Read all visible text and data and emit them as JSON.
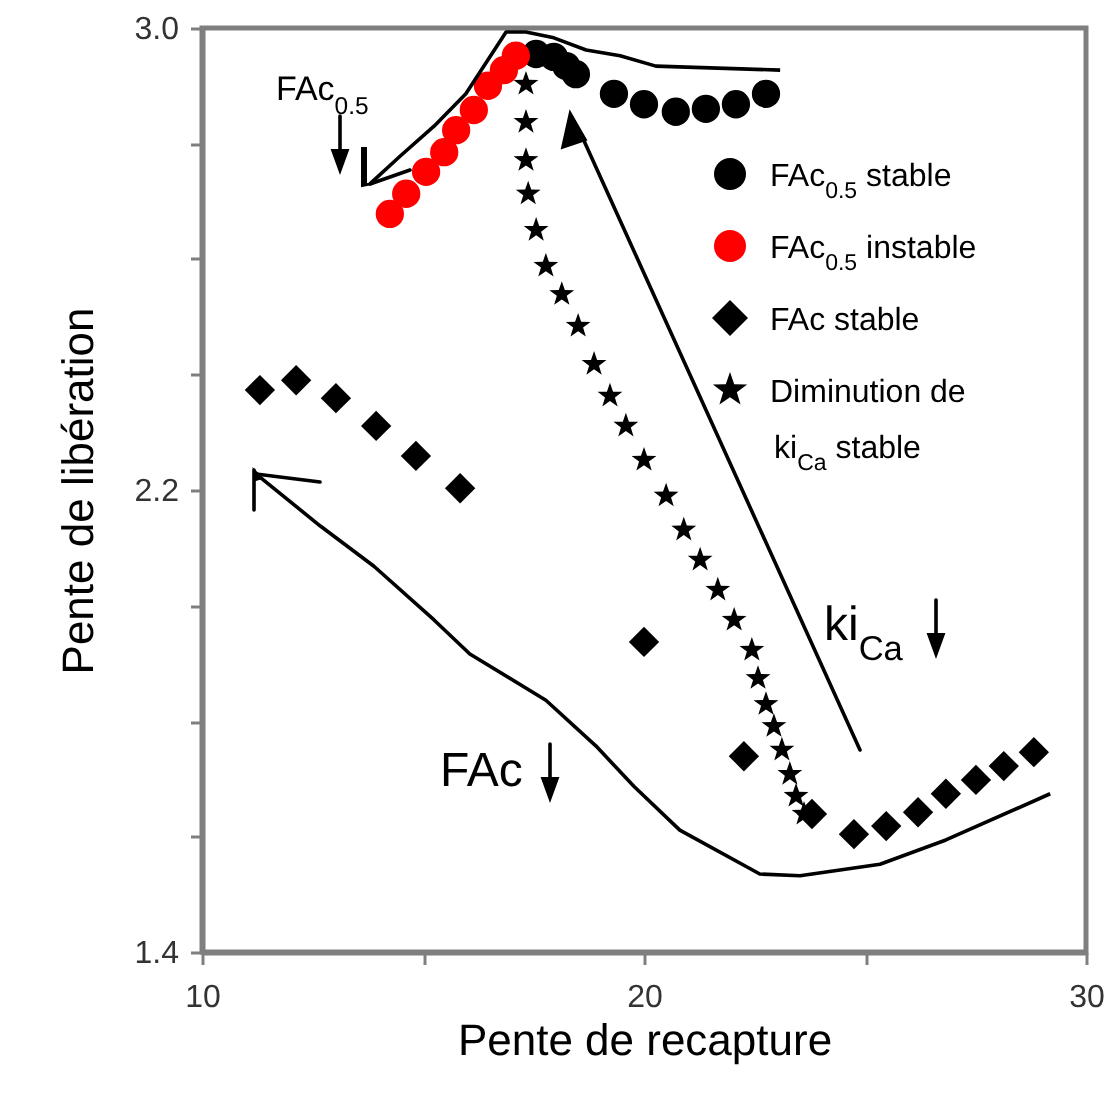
{
  "chart_data": {
    "type": "scatter",
    "xlabel": "Pente de recapture",
    "ylabel": "Pente de libération",
    "xlim": [
      10,
      30
    ],
    "ylim": [
      1.4,
      3.0
    ],
    "xticks": [
      10,
      {
        "value": 15,
        "label": null
      },
      20,
      {
        "value": 25,
        "label": null
      },
      30
    ],
    "yticks": [
      1.4,
      {
        "value": 1.6,
        "label": null
      },
      {
        "value": 1.8,
        "label": null
      },
      {
        "value": 2.0,
        "label": null
      },
      2.2,
      {
        "value": 2.4,
        "label": null
      },
      {
        "value": 2.6,
        "label": null
      },
      {
        "value": 2.8,
        "label": null
      },
      {
        "value": 3,
        "label": "3.0"
      }
    ],
    "legend": "top right",
    "annotations": [
      "FAc$_{0.5}$",
      "FAc",
      "ki$_{Ca}$"
    ],
    "series": [
      {
        "name": "FAc$_{0.5}$ stable",
        "color": "#000000",
        "marker": "circle",
        "x": [
          17.56,
          17.96,
          18.24,
          18.46,
          19.32,
          20.0,
          20.72,
          21.4,
          22.08,
          22.76
        ],
        "values": [
          2.955,
          2.95,
          2.934,
          2.92,
          2.886,
          2.868,
          2.855,
          2.86,
          2.868,
          2.886
        ]
      },
      {
        "name": "FAc$_{0.5}$ instable",
        "color": "#ff0000",
        "marker": "circle",
        "x": [
          14.25,
          14.62,
          15.07,
          15.48,
          15.75,
          16.15,
          16.47,
          16.83,
          17.1
        ],
        "values": [
          2.678,
          2.713,
          2.751,
          2.785,
          2.823,
          2.858,
          2.9,
          2.927,
          2.952
        ]
      },
      {
        "name": "FAc stable",
        "color": "#000000",
        "marker": "diamond",
        "x": [
          11.31,
          12.13,
          13.03,
          13.94,
          14.84,
          15.84,
          20.0,
          22.26,
          23.8,
          24.75,
          25.48,
          26.2,
          26.83,
          27.51,
          28.14,
          28.82
        ],
        "values": [
          2.373,
          2.39,
          2.359,
          2.311,
          2.259,
          2.203,
          1.937,
          1.739,
          1.639,
          1.604,
          1.618,
          1.642,
          1.674,
          1.698,
          1.722,
          1.746
        ]
      },
      {
        "type": "line",
        "color": "#000000",
        "x": [
          13.8,
          14.48,
          15.25,
          15.97,
          16.88,
          17.33,
          17.96,
          18.69,
          19.46,
          20.27,
          23.08
        ],
        "values": [
          2.73,
          2.778,
          2.83,
          2.886,
          2.993,
          2.993,
          2.983,
          2.962,
          2.952,
          2.934,
          2.927
        ]
      },
      {
        "type": "line",
        "color": "#000000",
        "x": [
          11.22,
          12.67,
          13.89,
          15.25,
          16.06,
          17.78,
          18.91,
          19.77,
          20.81,
          22.62,
          23.53,
          25.34,
          26.83,
          29.19
        ],
        "values": [
          2.228,
          2.138,
          2.068,
          1.975,
          1.916,
          1.836,
          1.757,
          1.687,
          1.611,
          1.535,
          1.532,
          1.552,
          1.594,
          1.674
        ]
      },
      {
        "name": "Diminution de ki$_{Ca}$ stable",
        "color": "#000000",
        "marker": "star",
        "x": [
          17.33,
          17.33,
          17.33,
          17.38,
          17.56,
          17.78,
          18.14,
          18.51,
          18.87,
          19.23,
          19.59,
          20.0,
          20.5,
          20.9,
          21.27,
          21.67,
          22.04,
          22.44,
          22.58,
          22.76,
          22.94,
          23.12,
          23.3,
          23.44,
          23.62
        ],
        "values": [
          2.903,
          2.837,
          2.771,
          2.713,
          2.65,
          2.588,
          2.539,
          2.484,
          2.418,
          2.363,
          2.311,
          2.252,
          2.19,
          2.131,
          2.079,
          2.027,
          1.975,
          1.923,
          1.874,
          1.829,
          1.791,
          1.75,
          1.708,
          1.67,
          1.639
        ]
      }
    ]
  }
}
